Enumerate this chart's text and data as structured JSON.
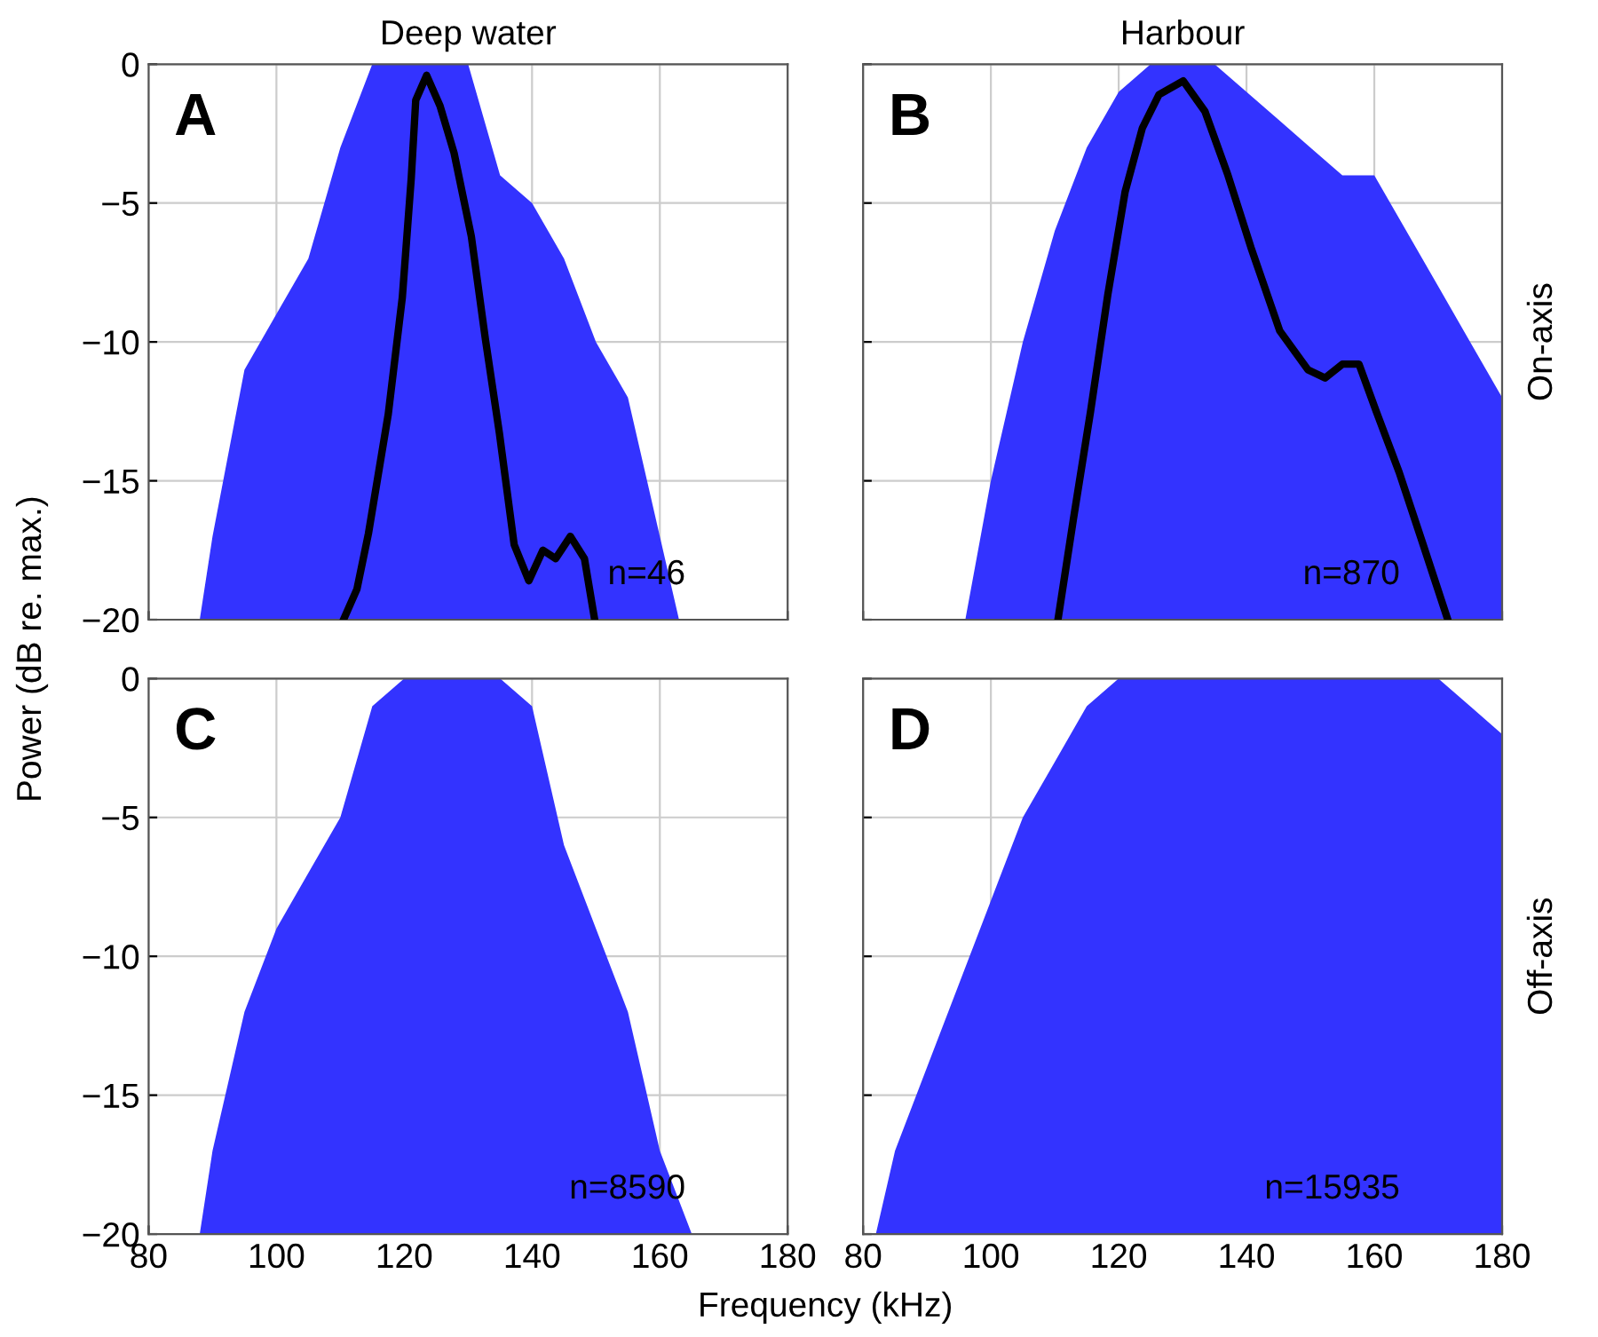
{
  "chart_data": [
    {
      "type": "line",
      "title": "Deep water",
      "ylabel": "Power (dB re. max.)",
      "annotations": [
        "A",
        "n=46"
      ],
      "xlim": [
        80,
        180
      ],
      "xticks": [
        80,
        100,
        120,
        140,
        160,
        180
      ],
      "ylim": [
        -20,
        0
      ],
      "yticks": [
        {
          "value": -20,
          "label": "−20"
        },
        {
          "value": -15,
          "label": "−15"
        },
        {
          "value": -10,
          "label": "−10"
        },
        {
          "value": -5,
          "label": "−5"
        },
        0
      ],
      "tick_labels": "y",
      "grid": true,
      "marker": "none",
      "line_style": "solid",
      "series": [
        {
          "type": "area",
          "color": "#3333ff",
          "x": [
            88,
            90,
            95,
            100,
            105,
            110,
            115,
            120,
            125,
            130,
            135,
            140,
            145,
            150,
            155,
            160,
            163
          ],
          "values": [
            -20,
            -17,
            -11,
            -9,
            -7,
            -3,
            0,
            0,
            0,
            0,
            -4,
            -5,
            -7,
            -10,
            -12,
            -17,
            -20
          ]
        },
        {
          "color": "#000000",
          "x": [
            110.5,
            112.6,
            114.4,
            117.5,
            119.7,
            121.1,
            121.8,
            123.5,
            125.6,
            127.8,
            130.5,
            132.7,
            134.9,
            137.2,
            139.5,
            141.7,
            143.7,
            146.0,
            148.2,
            149.8
          ],
          "values": [
            -20,
            -18.9,
            -16.9,
            -12.6,
            -8.4,
            -4.1,
            -1.3,
            -0.4,
            -1.5,
            -3.2,
            -6.2,
            -9.9,
            -13.3,
            -17.3,
            -18.6,
            -17.5,
            -17.8,
            -17.0,
            -17.8,
            -20
          ]
        }
      ]
    },
    {
      "type": "line",
      "title": "Harbour",
      "y2label": "On-axis",
      "annotations": [
        "B",
        "n=870"
      ],
      "xlim": [
        80,
        180
      ],
      "xticks": [
        80,
        100,
        120,
        140,
        160,
        180
      ],
      "ylim": [
        -20,
        0
      ],
      "yticks": [
        -20,
        -15,
        -10,
        -5,
        0
      ],
      "tick_labels": false,
      "grid": true,
      "marker": "none",
      "line_style": "solid",
      "series": [
        {
          "type": "area",
          "color": "#3333ff",
          "x": [
            96,
            100,
            105,
            110,
            115,
            120,
            125,
            130,
            135,
            140,
            145,
            150,
            155,
            160,
            165,
            170,
            175,
            180
          ],
          "values": [
            -20,
            -15,
            -10,
            -6,
            -3,
            -1,
            0,
            0,
            0,
            -1,
            -2,
            -3,
            -4,
            -4,
            -6,
            -8,
            -10,
            -12
          ]
        },
        {
          "color": "#000000",
          "x": [
            110.5,
            112.9,
            115.6,
            118.3,
            121.0,
            123.7,
            126.3,
            130.1,
            133.5,
            137.1,
            140.7,
            145.2,
            149.6,
            152.3,
            155.0,
            157.6,
            160.3,
            163.9,
            167.5,
            171.5
          ],
          "values": [
            -20,
            -16.4,
            -12.5,
            -8.3,
            -4.6,
            -2.3,
            -1.1,
            -0.6,
            -1.7,
            -4.0,
            -6.6,
            -9.6,
            -11.0,
            -11.3,
            -10.8,
            -10.8,
            -12.5,
            -14.7,
            -17.2,
            -20
          ]
        }
      ]
    },
    {
      "type": "area",
      "xlabel": "Frequency (kHz)",
      "annotations": [
        "C",
        "n=8590"
      ],
      "xlim": [
        80,
        180
      ],
      "xticks": [
        80,
        100,
        120,
        140,
        160,
        180
      ],
      "ylim": [
        -20,
        0
      ],
      "yticks": [
        {
          "value": -20,
          "label": "−20"
        },
        {
          "value": -15,
          "label": "−15"
        },
        {
          "value": -10,
          "label": "−10"
        },
        {
          "value": -5,
          "label": "−5"
        },
        0
      ],
      "grid": true,
      "series": [
        {
          "color": "#3333ff",
          "x": [
            88,
            90,
            95,
            100,
            105,
            110,
            115,
            120,
            125,
            130,
            135,
            140,
            145,
            150,
            155,
            160,
            165
          ],
          "values": [
            -20,
            -17,
            -12,
            -9,
            -7,
            -5,
            -1,
            0,
            0,
            0,
            0,
            -1,
            -6,
            -9,
            -12,
            -17,
            -20
          ]
        }
      ]
    },
    {
      "type": "area",
      "y2label": "Off-axis",
      "annotations": [
        "D",
        "n=15935"
      ],
      "xlim": [
        80,
        180
      ],
      "xticks": [
        80,
        100,
        120,
        140,
        160,
        180
      ],
      "ylim": [
        -20,
        0
      ],
      "yticks": [
        -20,
        -15,
        -10,
        -5,
        0
      ],
      "tick_labels": "x",
      "grid": true,
      "series": [
        {
          "color": "#3333ff",
          "x": [
            82,
            85,
            90,
            95,
            100,
            105,
            110,
            115,
            120,
            125,
            130,
            135,
            140,
            145,
            150,
            155,
            160,
            165,
            170,
            175,
            180
          ],
          "values": [
            -20,
            -17,
            -14,
            -11,
            -8,
            -5,
            -3,
            -1,
            0,
            0,
            0,
            0,
            0,
            0,
            0,
            0,
            0,
            0,
            0,
            -1,
            -2
          ]
        }
      ]
    }
  ]
}
